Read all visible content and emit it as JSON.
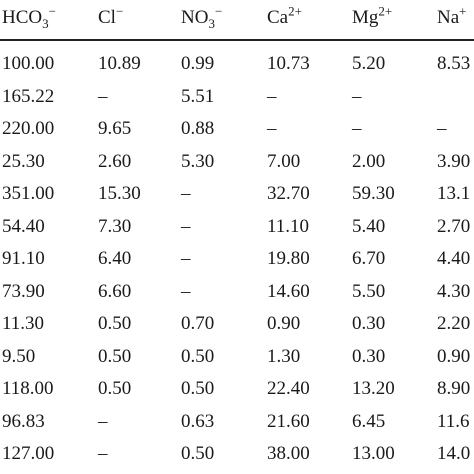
{
  "headers": [
    {
      "base": "HCO",
      "sub": "3",
      "sup": "−"
    },
    {
      "base": "Cl",
      "sub": "",
      "sup": "−"
    },
    {
      "base": "NO",
      "sub": "3",
      "sup": "−"
    },
    {
      "base": "Ca",
      "sub": "",
      "sup": "2+"
    },
    {
      "base": "Mg",
      "sub": "",
      "sup": "2+"
    },
    {
      "base": "Na",
      "sub": "",
      "sup": "+"
    }
  ],
  "rows": [
    [
      "100.00",
      "10.89",
      "0.99",
      "10.73",
      "5.20",
      "8.53"
    ],
    [
      "165.22",
      "–",
      "5.51",
      "–",
      "–",
      ""
    ],
    [
      "220.00",
      "9.65",
      "0.88",
      "–",
      "–",
      "–"
    ],
    [
      "25.30",
      "2.60",
      "5.30",
      "7.00",
      "2.00",
      "3.90"
    ],
    [
      "351.00",
      "15.30",
      "–",
      "32.70",
      "59.30",
      "13.1"
    ],
    [
      "54.40",
      "7.30",
      "–",
      "11.10",
      "5.40",
      "2.70"
    ],
    [
      "91.10",
      "6.40",
      "–",
      "19.80",
      "6.70",
      "4.40"
    ],
    [
      "73.90",
      "6.60",
      "–",
      "14.60",
      "5.50",
      "4.30"
    ],
    [
      "11.30",
      "0.50",
      "0.70",
      "0.90",
      "0.30",
      "2.20"
    ],
    [
      "9.50",
      "0.50",
      "0.50",
      "1.30",
      "0.30",
      "0.90"
    ],
    [
      "118.00",
      "0.50",
      "0.50",
      "22.40",
      "13.20",
      "8.90"
    ],
    [
      "96.83",
      "–",
      "0.63",
      "21.60",
      "6.45",
      "11.6"
    ],
    [
      "127.00",
      "–",
      "0.50",
      "38.00",
      "13.00",
      "14.0"
    ]
  ]
}
